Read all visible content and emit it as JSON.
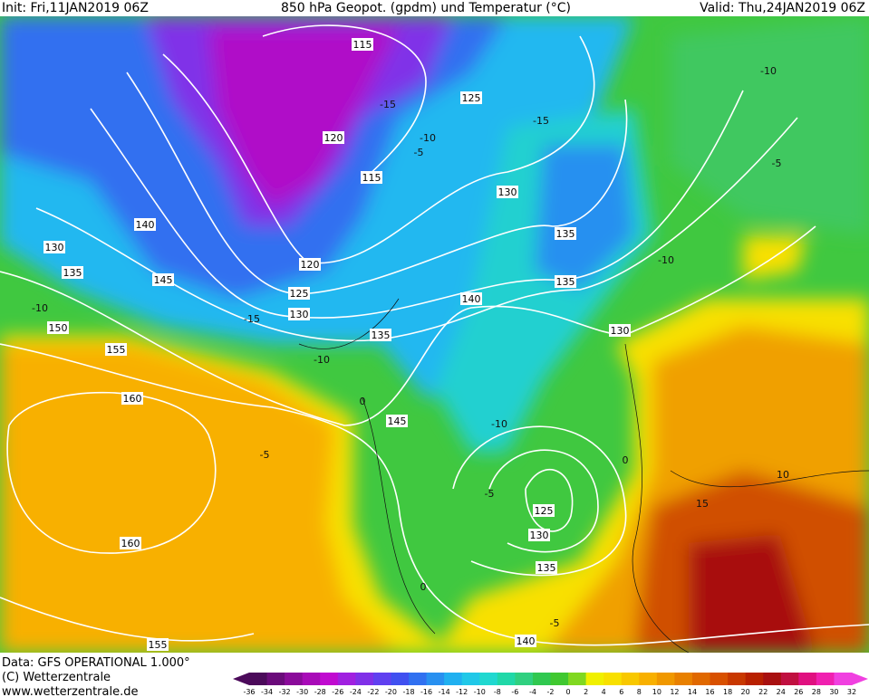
{
  "header": {
    "init": "Init: Fri,11JAN2019 06Z",
    "title": "850 hPa Geopot. (gpdm) und Temperatur (°C)",
    "valid": "Valid: Thu,24JAN2019 06Z"
  },
  "footer": {
    "data_source": "Data: GFS OPERATIONAL 1.000°",
    "copyright": "(C) Wetterzentrale",
    "website": "www.wetterzentrale.de"
  },
  "color_scale": {
    "labels": [
      -36,
      -34,
      -32,
      -30,
      -28,
      -26,
      -24,
      -22,
      -20,
      -18,
      -16,
      -14,
      -12,
      -10,
      -8,
      -6,
      -4,
      -2,
      0,
      2,
      4,
      6,
      8,
      10,
      12,
      14,
      16,
      18,
      20,
      22,
      24,
      26,
      28,
      30,
      32
    ],
    "colors": [
      "#4b0a5a",
      "#6a0a7a",
      "#8a0a9a",
      "#a80ab8",
      "#c00ad0",
      "#a020e0",
      "#8030e8",
      "#6040f0",
      "#4050f0",
      "#3070f0",
      "#2890f0",
      "#20b0f0",
      "#20c8e8",
      "#20d8d0",
      "#20d8a8",
      "#30d080",
      "#30c850",
      "#40c830",
      "#80d820",
      "#f0f000",
      "#f8e000",
      "#f8c800",
      "#f8b000",
      "#f09800",
      "#e88000",
      "#e06800",
      "#d85000",
      "#c83800",
      "#b82000",
      "#a81010",
      "#c01040",
      "#e01080",
      "#f020b0",
      "#f040e0"
    ]
  },
  "contour_labels": {
    "geopotential": [
      115,
      125,
      120,
      115,
      130,
      140,
      130,
      135,
      145,
      120,
      125,
      130,
      135,
      135,
      135,
      140,
      130,
      150,
      155,
      160,
      145,
      125,
      130,
      135,
      160,
      155,
      140
    ],
    "temperature": [
      -15,
      -10,
      -5,
      -15,
      -10,
      -5,
      -10,
      -15,
      -10,
      0,
      -10,
      -5,
      -10,
      -5,
      0,
      10,
      15,
      0,
      -5
    ]
  }
}
